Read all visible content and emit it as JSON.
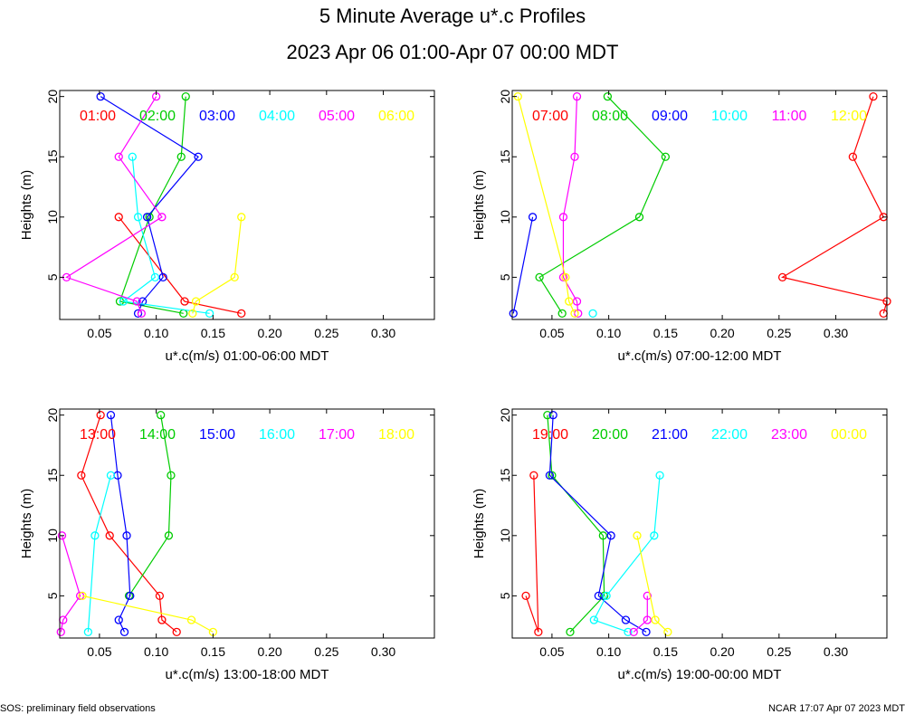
{
  "title": "5 Minute Average u*.c Profiles",
  "subtitle": "2023 Apr 06 01:00-Apr 07 00:00 MDT",
  "footer_left": "SOS: preliminary field observations",
  "footer_right": "NCAR 17:07 Apr 07 2023 MDT",
  "chart_data": [
    {
      "type": "line",
      "xlabel": "u*.c(m/s) 01:00-06:00 MDT",
      "ylabel": "Heights (m)",
      "xlim": [
        0.015,
        0.345
      ],
      "ylim": [
        1.5,
        20.5
      ],
      "xticks": [
        0.05,
        0.1,
        0.15,
        0.2,
        0.25,
        0.3
      ],
      "xtick_labels": [
        "0.05",
        "0.10",
        "0.15",
        "0.20",
        "0.25",
        "0.30"
      ],
      "yticks": [
        5,
        10,
        15,
        20
      ],
      "ytick_labels": [
        "5",
        "10",
        "15",
        "20"
      ],
      "series": [
        {
          "name": "01:00",
          "color": "#ff0000",
          "points": [
            [
              0.067,
              10
            ],
            [
              0.125,
              3
            ],
            [
              0.175,
              2
            ]
          ]
        },
        {
          "name": "02:00",
          "color": "#00cc00",
          "points": [
            [
              0.126,
              20
            ],
            [
              0.122,
              15
            ],
            [
              0.094,
              10
            ],
            [
              0.068,
              3
            ],
            [
              0.124,
              2
            ]
          ]
        },
        {
          "name": "03:00",
          "color": "#0000ff",
          "points": [
            [
              0.051,
              20
            ],
            [
              0.137,
              15
            ],
            [
              0.092,
              10
            ],
            [
              0.106,
              5
            ],
            [
              0.088,
              3
            ],
            [
              0.084,
              2
            ]
          ]
        },
        {
          "name": "04:00",
          "color": "#00ffff",
          "points": [
            [
              0.079,
              15
            ],
            [
              0.084,
              10
            ],
            [
              0.099,
              5
            ],
            [
              0.071,
              3
            ],
            [
              0.147,
              2
            ]
          ]
        },
        {
          "name": "05:00",
          "color": "#ff00ff",
          "points": [
            [
              0.1,
              20
            ],
            [
              0.067,
              15
            ],
            [
              0.105,
              10
            ],
            [
              0.021,
              5
            ],
            [
              0.083,
              3
            ],
            [
              0.087,
              2
            ]
          ]
        },
        {
          "name": "06:00",
          "color": "#ffff00",
          "points": [
            [
              0.175,
              10
            ],
            [
              0.169,
              5
            ],
            [
              0.135,
              3
            ],
            [
              0.132,
              2
            ]
          ]
        }
      ]
    },
    {
      "type": "line",
      "xlabel": "u*.c(m/s) 07:00-12:00 MDT",
      "ylabel": "Heights (m)",
      "xlim": [
        0.015,
        0.345
      ],
      "ylim": [
        1.5,
        20.5
      ],
      "xticks": [
        0.05,
        0.1,
        0.15,
        0.2,
        0.25,
        0.3
      ],
      "xtick_labels": [
        "0.05",
        "0.10",
        "0.15",
        "0.20",
        "0.25",
        "0.30"
      ],
      "yticks": [
        5,
        10,
        15,
        20
      ],
      "ytick_labels": [
        "5",
        "10",
        "15",
        "20"
      ],
      "series": [
        {
          "name": "07:00",
          "color": "#ff0000",
          "points": [
            [
              0.333,
              20
            ],
            [
              0.315,
              15
            ],
            [
              0.342,
              10
            ],
            [
              0.253,
              5
            ],
            [
              0.345,
              3
            ],
            [
              0.342,
              2
            ]
          ]
        },
        {
          "name": "08:00",
          "color": "#00cc00",
          "points": [
            [
              0.099,
              20
            ],
            [
              0.15,
              15
            ],
            [
              0.127,
              10
            ],
            [
              0.039,
              5
            ],
            [
              0.059,
              2
            ]
          ]
        },
        {
          "name": "09:00",
          "color": "#0000ff",
          "points": [
            [
              0.033,
              10
            ],
            [
              0.016,
              2
            ]
          ]
        },
        {
          "name": "10:00",
          "color": "#00ffff",
          "points": [
            [
              0.086,
              2
            ]
          ]
        },
        {
          "name": "11:00",
          "color": "#ff00ff",
          "points": [
            [
              0.072,
              20
            ],
            [
              0.07,
              15
            ],
            [
              0.06,
              10
            ],
            [
              0.06,
              5
            ],
            [
              0.072,
              3
            ],
            [
              0.073,
              2
            ]
          ]
        },
        {
          "name": "12:00",
          "color": "#ffff00",
          "points": [
            [
              0.02,
              20
            ],
            [
              0.062,
              5
            ],
            [
              0.065,
              3
            ],
            [
              0.07,
              2
            ]
          ]
        }
      ]
    },
    {
      "type": "line",
      "xlabel": "u*.c(m/s) 13:00-18:00 MDT",
      "ylabel": "Heights (m)",
      "xlim": [
        0.015,
        0.345
      ],
      "ylim": [
        1.5,
        20.5
      ],
      "xticks": [
        0.05,
        0.1,
        0.15,
        0.2,
        0.25,
        0.3
      ],
      "xtick_labels": [
        "0.05",
        "0.10",
        "0.15",
        "0.20",
        "0.25",
        "0.30"
      ],
      "yticks": [
        5,
        10,
        15,
        20
      ],
      "ytick_labels": [
        "5",
        "10",
        "15",
        "20"
      ],
      "series": [
        {
          "name": "13:00",
          "color": "#ff0000",
          "points": [
            [
              0.051,
              20
            ],
            [
              0.034,
              15
            ],
            [
              0.059,
              10
            ],
            [
              0.103,
              5
            ],
            [
              0.105,
              3
            ],
            [
              0.118,
              2
            ]
          ]
        },
        {
          "name": "14:00",
          "color": "#00cc00",
          "points": [
            [
              0.104,
              20
            ],
            [
              0.113,
              15
            ],
            [
              0.111,
              10
            ],
            [
              0.076,
              5
            ]
          ]
        },
        {
          "name": "15:00",
          "color": "#0000ff",
          "points": [
            [
              0.06,
              20
            ],
            [
              0.066,
              15
            ],
            [
              0.074,
              10
            ],
            [
              0.077,
              5
            ],
            [
              0.067,
              3
            ],
            [
              0.072,
              2
            ]
          ]
        },
        {
          "name": "16:00",
          "color": "#00ffff",
          "points": [
            [
              0.06,
              15
            ],
            [
              0.046,
              10
            ],
            [
              0.04,
              2
            ]
          ]
        },
        {
          "name": "17:00",
          "color": "#ff00ff",
          "points": [
            [
              0.017,
              10
            ],
            [
              0.033,
              5
            ],
            [
              0.018,
              3
            ],
            [
              0.016,
              2
            ]
          ]
        },
        {
          "name": "18:00",
          "color": "#ffff00",
          "points": [
            [
              0.035,
              5
            ],
            [
              0.131,
              3
            ],
            [
              0.15,
              2
            ]
          ]
        }
      ]
    },
    {
      "type": "line",
      "xlabel": "u*.c(m/s) 19:00-00:00 MDT",
      "ylabel": "Heights (m)",
      "xlim": [
        0.015,
        0.345
      ],
      "ylim": [
        1.5,
        20.5
      ],
      "xticks": [
        0.05,
        0.1,
        0.15,
        0.2,
        0.25,
        0.3
      ],
      "xtick_labels": [
        "0.05",
        "0.10",
        "0.15",
        "0.20",
        "0.25",
        "0.30"
      ],
      "yticks": [
        5,
        10,
        15,
        20
      ],
      "ytick_labels": [
        "5",
        "10",
        "15",
        "20"
      ],
      "series": [
        {
          "name": "19:00",
          "color": "#ff0000",
          "points": [
            [
              0.027,
              5
            ],
            [
              0.038,
              2
            ],
            [
              0.034,
              15
            ]
          ]
        },
        {
          "name": "20:00",
          "color": "#00cc00",
          "points": [
            [
              0.046,
              20
            ],
            [
              0.05,
              15
            ],
            [
              0.095,
              10
            ],
            [
              0.096,
              5
            ],
            [
              0.066,
              2
            ]
          ]
        },
        {
          "name": "21:00",
          "color": "#0000ff",
          "points": [
            [
              0.051,
              20
            ],
            [
              0.048,
              15
            ],
            [
              0.102,
              10
            ],
            [
              0.091,
              5
            ],
            [
              0.115,
              3
            ],
            [
              0.133,
              2
            ]
          ]
        },
        {
          "name": "22:00",
          "color": "#00ffff",
          "points": [
            [
              0.145,
              15
            ],
            [
              0.14,
              10
            ],
            [
              0.098,
              5
            ],
            [
              0.087,
              3
            ],
            [
              0.117,
              2
            ]
          ]
        },
        {
          "name": "23:00",
          "color": "#ff00ff",
          "points": [
            [
              0.134,
              5
            ],
            [
              0.134,
              3
            ],
            [
              0.122,
              2
            ]
          ]
        },
        {
          "name": "00:00",
          "color": "#ffff00",
          "points": [
            [
              0.125,
              10
            ],
            [
              0.141,
              3
            ],
            [
              0.152,
              2
            ]
          ]
        }
      ]
    }
  ]
}
